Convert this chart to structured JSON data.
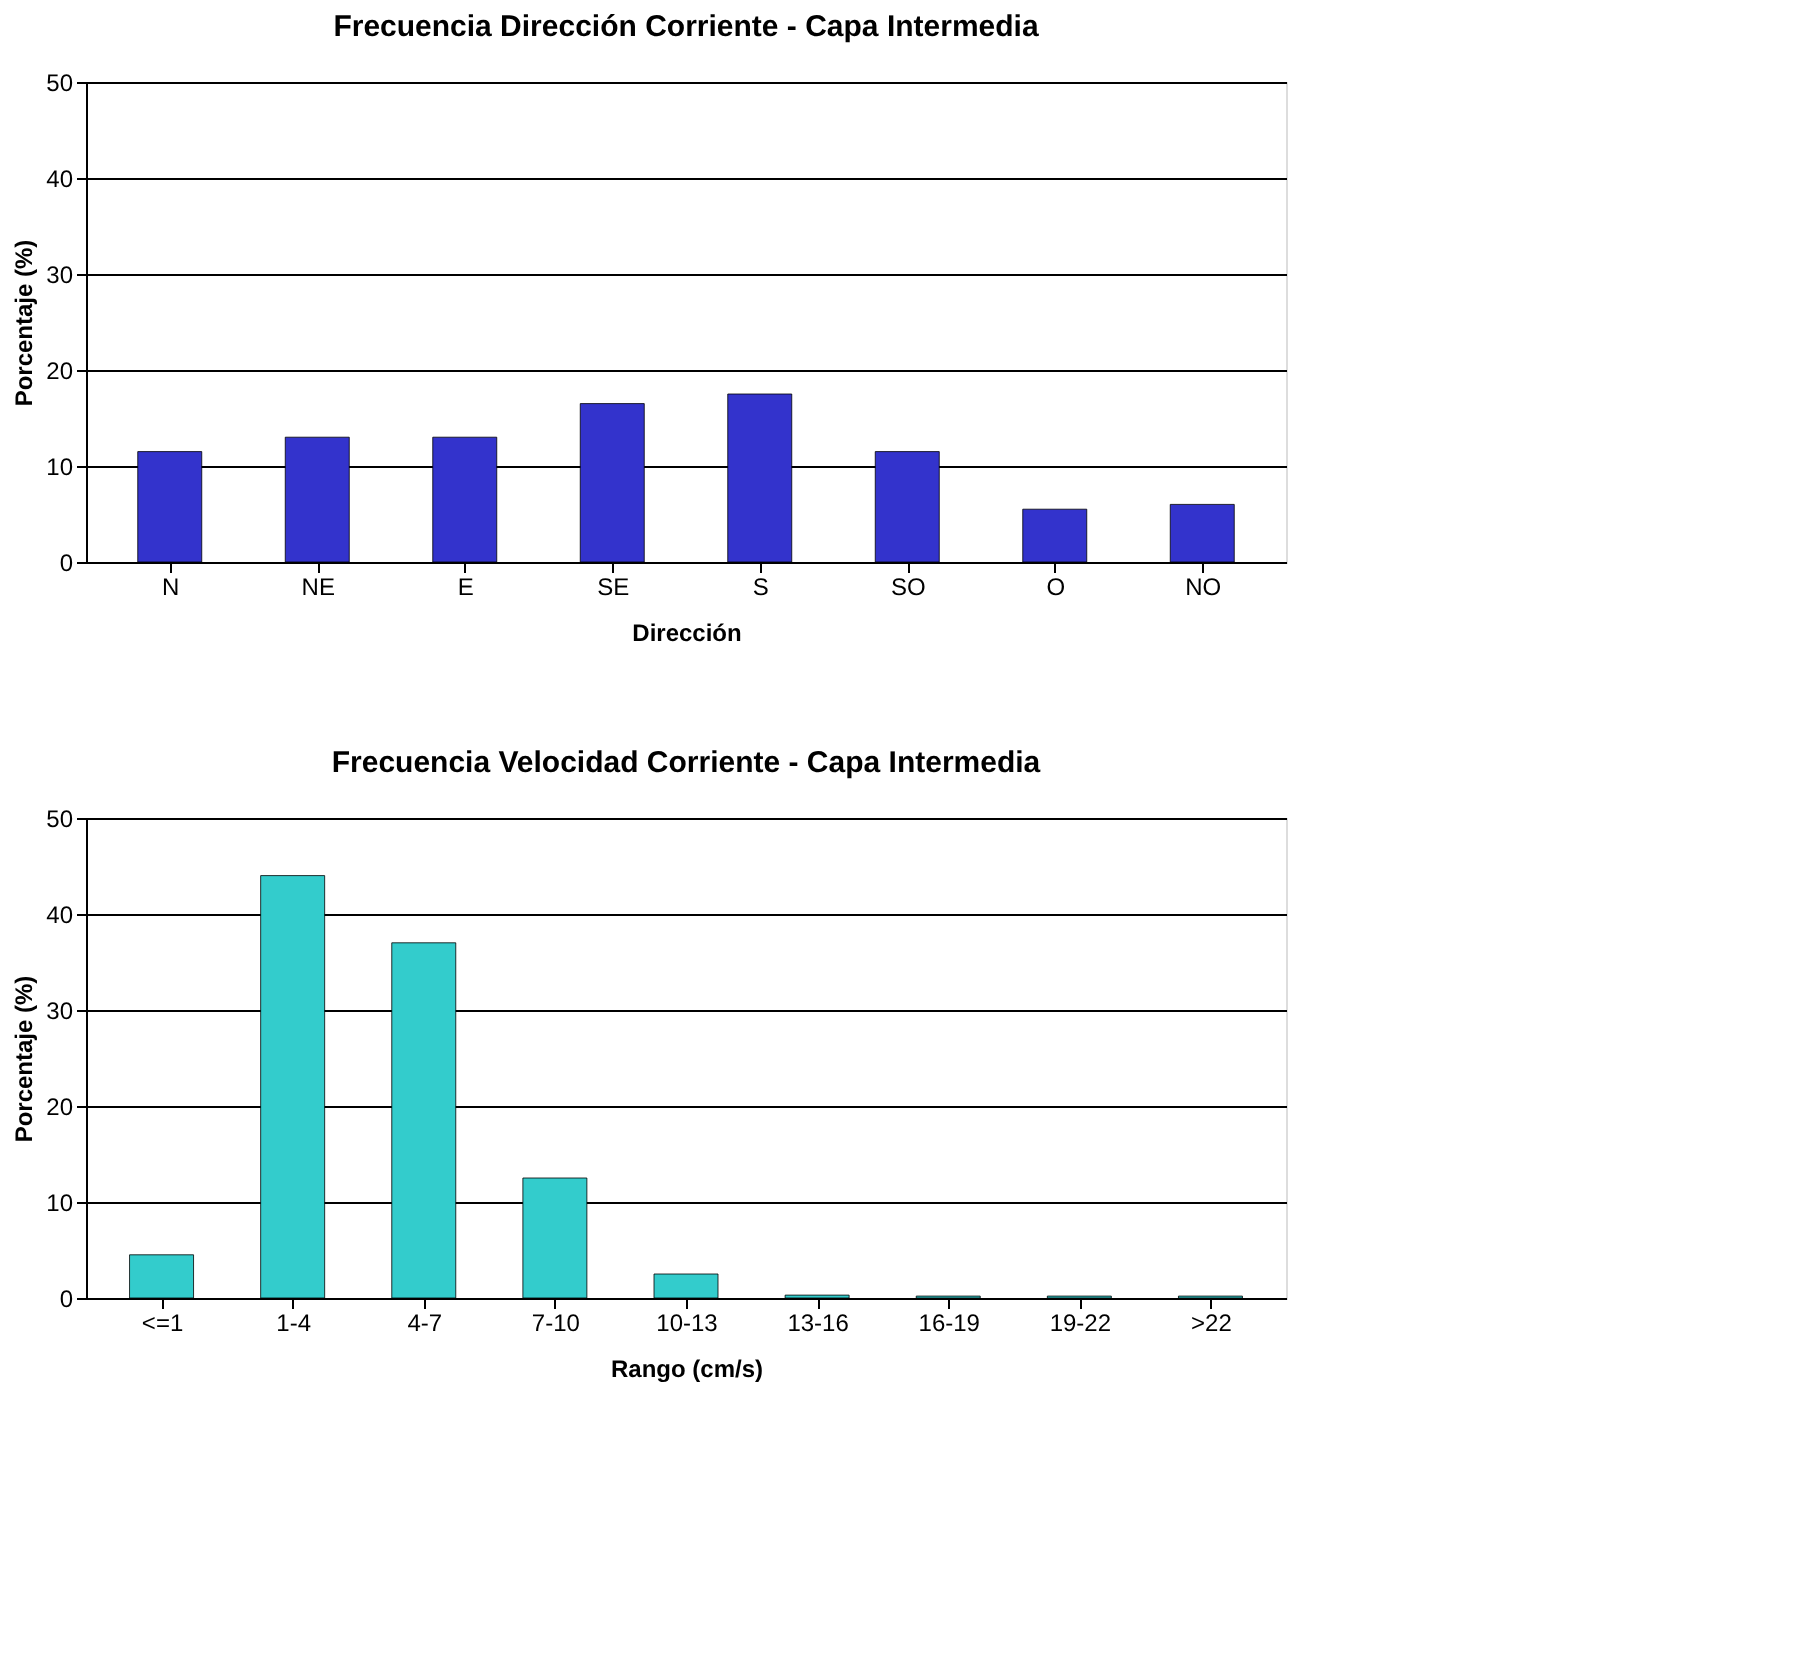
{
  "chart_data": [
    {
      "type": "bar",
      "title": "Frecuencia Dirección Corriente - Capa Intermedia",
      "xlabel": "Dirección",
      "ylabel": "Porcentaje (%)",
      "categories": [
        "N",
        "NE",
        "E",
        "SE",
        "S",
        "SO",
        "O",
        "NO"
      ],
      "values": [
        11.5,
        13,
        13,
        16.5,
        17.5,
        11.5,
        5.5,
        6
      ],
      "color": "#3333cc",
      "ylim": [
        0,
        50
      ],
      "yticks": [
        0,
        10,
        20,
        30,
        40,
        50
      ],
      "grid": "y"
    },
    {
      "type": "bar",
      "title": "Frecuencia Velocidad Corriente - Capa Intermedia",
      "xlabel": "Rango (cm/s)",
      "ylabel": "Porcentaje (%)",
      "categories": [
        "<=1",
        "1-4",
        "4-7",
        "7-10",
        "10-13",
        "13-16",
        "16-19",
        "19-22",
        ">22"
      ],
      "values": [
        4.5,
        44,
        37,
        12.5,
        2.5,
        0.3,
        0.2,
        0.2,
        0.2
      ],
      "color": "#33cccc",
      "ylim": [
        0,
        50
      ],
      "yticks": [
        0,
        10,
        20,
        30,
        40,
        50
      ],
      "grid": "y"
    }
  ]
}
